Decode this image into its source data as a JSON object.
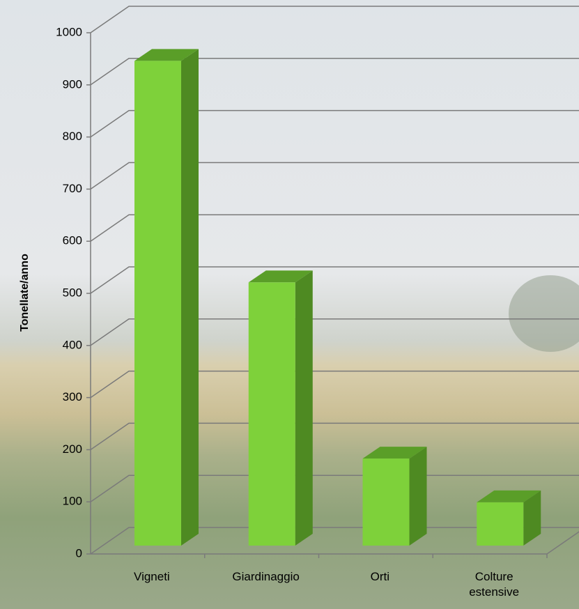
{
  "chart_data": {
    "type": "bar3d",
    "y_label": "Tonellate/anno",
    "categories": [
      "Vigneti",
      "Giardinaggio",
      "Orti",
      "Colture estensive"
    ],
    "values": [
      930,
      505,
      167,
      83
    ],
    "color": "#7ed13a",
    "ylim": [
      0,
      1000
    ],
    "yticks": [
      0,
      100,
      200,
      300,
      400,
      500,
      600,
      700,
      800,
      900,
      1000
    ],
    "grid": true
  }
}
